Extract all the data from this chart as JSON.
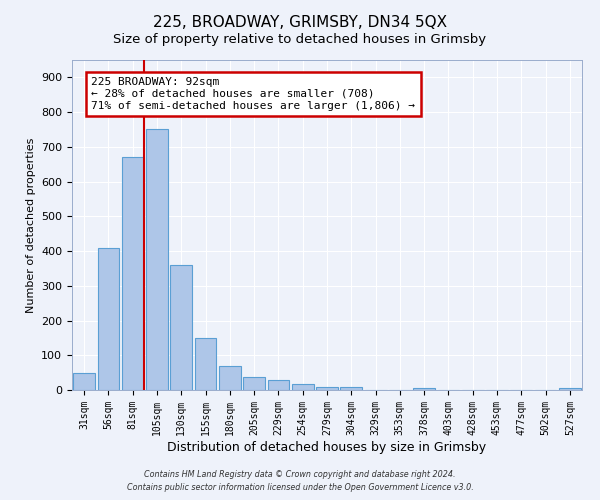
{
  "title": "225, BROADWAY, GRIMSBY, DN34 5QX",
  "subtitle": "Size of property relative to detached houses in Grimsby",
  "xlabel": "Distribution of detached houses by size in Grimsby",
  "ylabel": "Number of detached properties",
  "bar_labels": [
    "31sqm",
    "56sqm",
    "81sqm",
    "105sqm",
    "130sqm",
    "155sqm",
    "180sqm",
    "205sqm",
    "229sqm",
    "254sqm",
    "279sqm",
    "304sqm",
    "329sqm",
    "353sqm",
    "378sqm",
    "403sqm",
    "428sqm",
    "453sqm",
    "477sqm",
    "502sqm",
    "527sqm"
  ],
  "bar_values": [
    50,
    410,
    670,
    750,
    360,
    150,
    70,
    38,
    30,
    18,
    10,
    10,
    0,
    0,
    5,
    0,
    0,
    0,
    0,
    0,
    5
  ],
  "bar_color": "#aec6e8",
  "bar_edge_color": "#5a9fd4",
  "vline_color": "#cc0000",
  "ylim": [
    0,
    950
  ],
  "yticks": [
    0,
    100,
    200,
    300,
    400,
    500,
    600,
    700,
    800,
    900
  ],
  "annotation_text": "225 BROADWAY: 92sqm\n← 28% of detached houses are smaller (708)\n71% of semi-detached houses are larger (1,806) →",
  "annotation_box_color": "#ffffff",
  "annotation_box_edge_color": "#cc0000",
  "footer_line1": "Contains HM Land Registry data © Crown copyright and database right 2024.",
  "footer_line2": "Contains public sector information licensed under the Open Government Licence v3.0.",
  "background_color": "#eef2fa",
  "grid_color": "#ffffff",
  "title_fontsize": 11,
  "axis_fontsize": 8
}
